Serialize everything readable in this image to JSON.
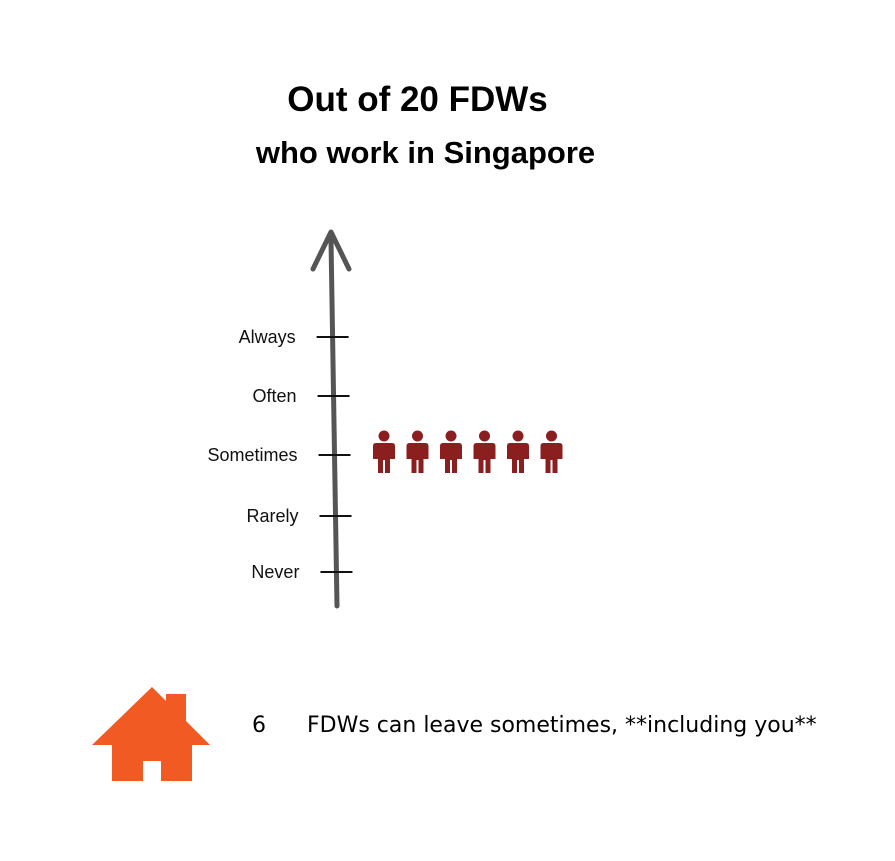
{
  "title_line1": "Out of 20 FDWs",
  "title_line2": "who work in Singapore",
  "chart_data": {
    "type": "pictogram",
    "axis": "vertical",
    "categories": [
      "Never",
      "Rarely",
      "Sometimes",
      "Often",
      "Always"
    ],
    "highlighted_category": "Sometimes",
    "values": [
      0,
      0,
      6,
      0,
      0
    ],
    "total": 20,
    "icon": "person-icon",
    "icon_color": "#8b1f1f",
    "axis_color": "#555555"
  },
  "footer": {
    "icon": "house-icon",
    "icon_color": "#f15a22",
    "count": "6",
    "text": "FDWs can leave sometimes, **including you**"
  }
}
